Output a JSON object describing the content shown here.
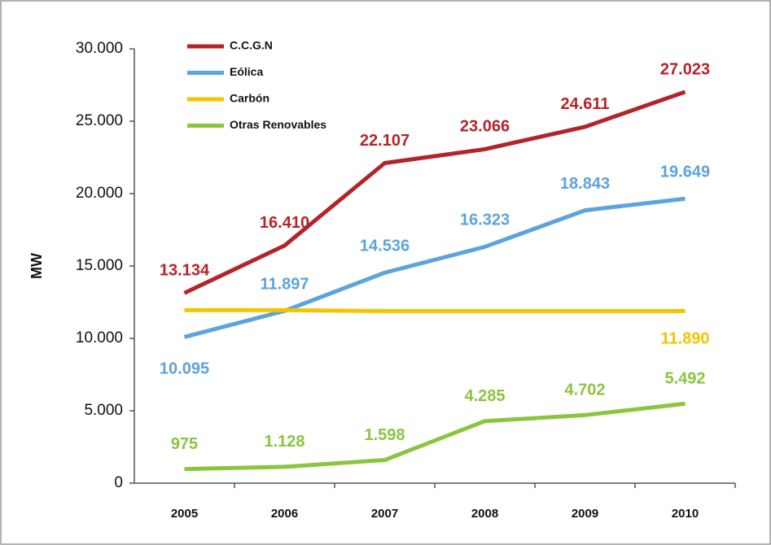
{
  "chart_data": {
    "type": "line",
    "y_label": "MW",
    "categories": [
      "2005",
      "2006",
      "2007",
      "2008",
      "2009",
      "2010"
    ],
    "series": [
      {
        "name": "C.C.G.N",
        "color": "#b3242a",
        "values": [
          13134,
          16410,
          22107,
          23066,
          24611,
          27023
        ],
        "value_labels": [
          "13.134",
          "16.410",
          "22.107",
          "23.066",
          "24.611",
          "27.023"
        ]
      },
      {
        "name": "Eólica",
        "color": "#5da3dc",
        "values": [
          10095,
          11897,
          14536,
          16323,
          18843,
          19649
        ],
        "value_labels": [
          "10.095",
          "11.897",
          "14.536",
          "16.323",
          "18.843",
          "19.649"
        ]
      },
      {
        "name": "Carbón",
        "color": "#f2c500",
        "values": [
          11950,
          11950,
          11890,
          11890,
          11890,
          11890
        ],
        "value_labels": [
          null,
          null,
          null,
          null,
          null,
          "11.890"
        ]
      },
      {
        "name": "Otras Renovables",
        "color": "#8cc43f",
        "values": [
          975,
          1128,
          1598,
          4285,
          4702,
          5492
        ],
        "value_labels": [
          "975",
          "1.128",
          "1.598",
          "4.285",
          "4.702",
          "5.492"
        ]
      }
    ],
    "ylim": [
      0,
      30000
    ],
    "yticks": [
      0,
      {
        "value": 5000,
        "label": "5.000"
      },
      {
        "value": 10000,
        "label": "10.000"
      },
      {
        "value": 15000,
        "label": "15.000"
      },
      {
        "value": 20000,
        "label": "20.000"
      },
      {
        "value": 25000,
        "label": "25.000"
      },
      {
        "value": 30000,
        "label": "30.000"
      }
    ],
    "legend": "top-left",
    "grid": false
  }
}
